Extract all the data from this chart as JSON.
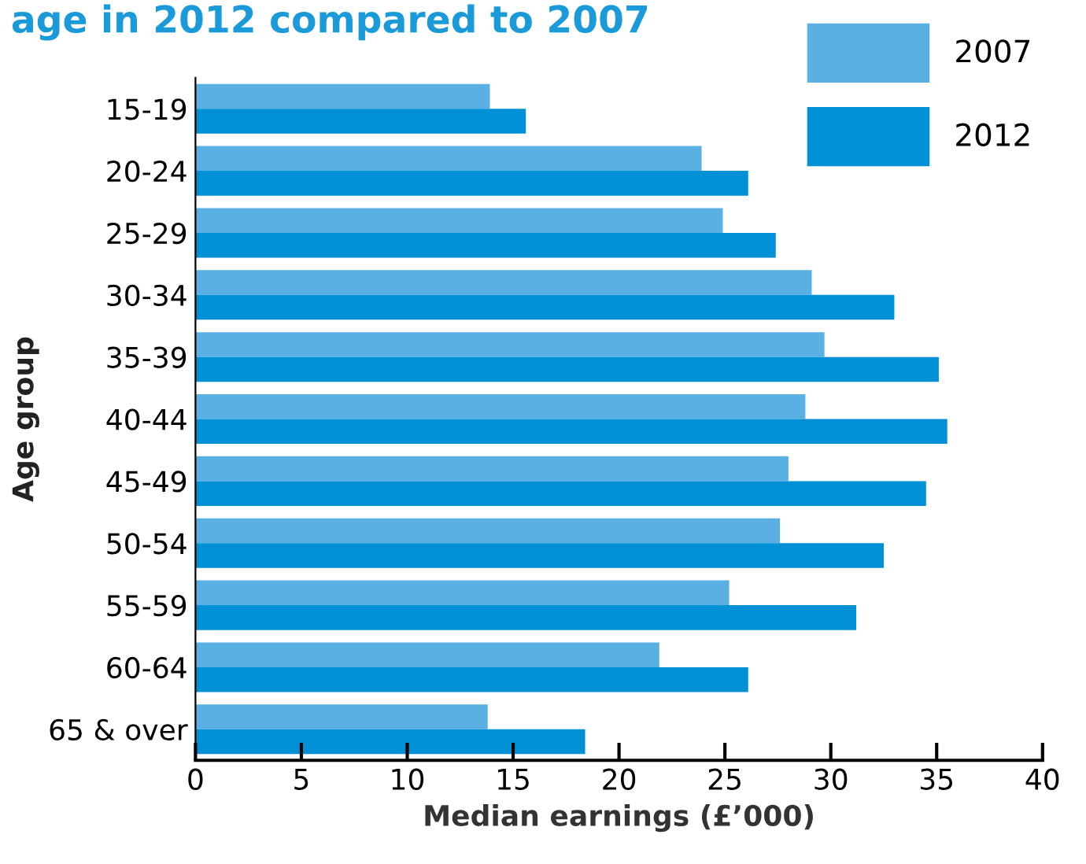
{
  "chart_data": {
    "type": "bar",
    "orientation": "horizontal",
    "title": "age in 2012 compared to 2007",
    "xlabel": "Median earnings (£’000)",
    "ylabel": "Age group",
    "categories": [
      "15-19",
      "20-24",
      "25-29",
      "30-34",
      "35-39",
      "40-44",
      "45-49",
      "50-54",
      "55-59",
      "60-64",
      "65 & over"
    ],
    "series": [
      {
        "name": "2007",
        "color": "#5ab0e2",
        "values": [
          13.9,
          23.9,
          24.9,
          29.1,
          29.7,
          28.8,
          28.0,
          27.6,
          25.2,
          21.9,
          13.8
        ]
      },
      {
        "name": "2012",
        "color": "#0090d6",
        "values": [
          15.6,
          26.1,
          27.4,
          33.0,
          35.1,
          35.5,
          34.5,
          32.5,
          31.2,
          26.1,
          18.4
        ]
      }
    ],
    "xlim": [
      0,
      40
    ],
    "xticks": [
      0,
      5,
      10,
      15,
      20,
      25,
      30,
      35,
      40
    ],
    "grid": false,
    "legend": "top right"
  }
}
